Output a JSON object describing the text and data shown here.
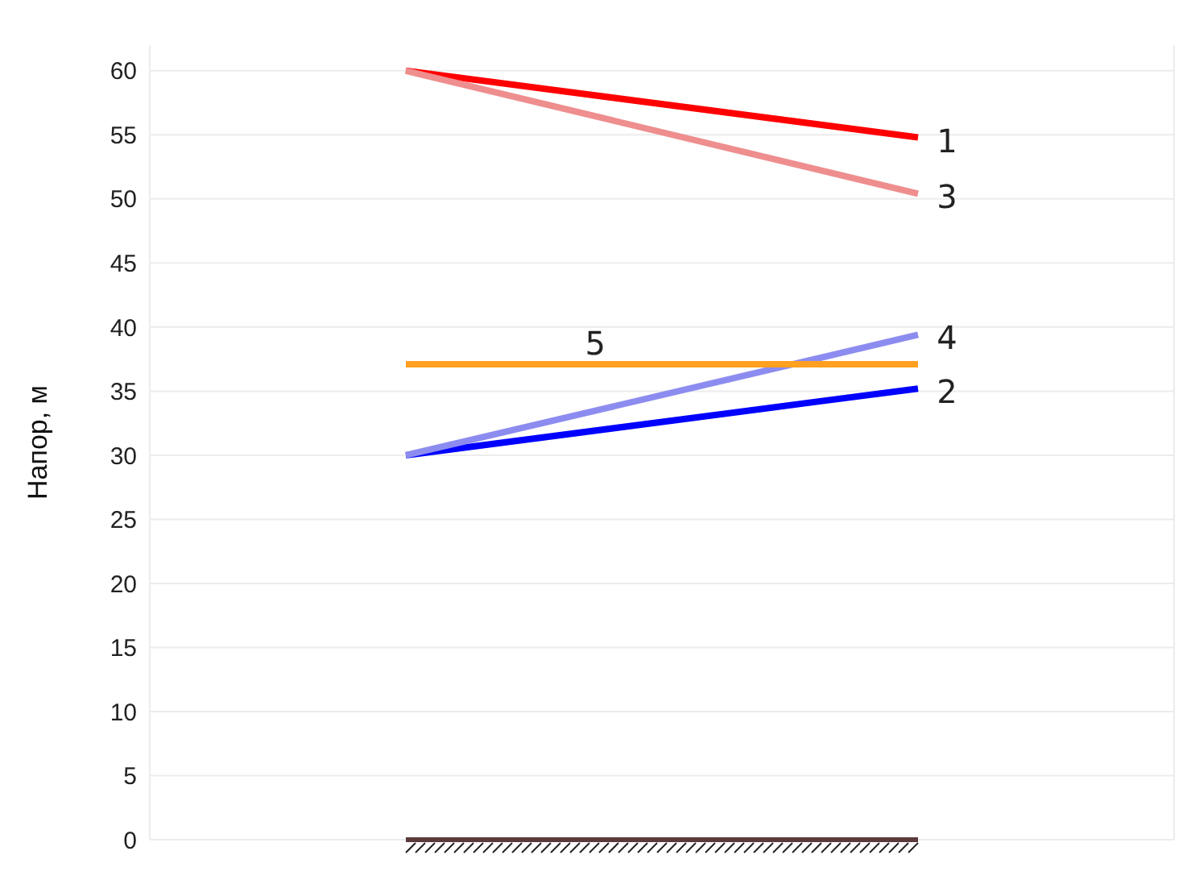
{
  "chart_data": {
    "type": "line",
    "ylabel": "Напор, м",
    "categories": [
      null,
      null
    ],
    "ylim": [
      0,
      62
    ],
    "yticks": [
      0,
      5,
      10,
      15,
      20,
      25,
      30,
      35,
      40,
      45,
      50,
      55,
      60
    ],
    "tick_labels": "y",
    "grid": true,
    "marker": "none",
    "line_style": "solid",
    "series": [
      {
        "name": "1",
        "color": "#ff0000",
        "values": [
          60,
          54.8
        ]
      },
      {
        "name": "2",
        "color": "#0000ff",
        "values": [
          30,
          35.2
        ]
      },
      {
        "name": "3",
        "color": "#ee8e8e",
        "values": [
          60,
          50.4
        ]
      },
      {
        "name": "4",
        "color": "#8c8cf0",
        "values": [
          30,
          39.4
        ]
      },
      {
        "name": "5",
        "color": "#ffa020",
        "values": [
          37.1,
          37.1
        ]
      }
    ]
  }
}
